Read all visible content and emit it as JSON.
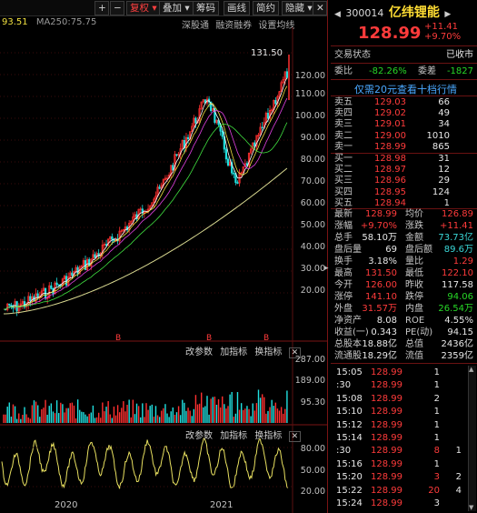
{
  "toolbar": {
    "plus": "+",
    "minus": "−",
    "adjust": "复权",
    "overlay": "叠加",
    "chip": "筹码",
    "draw": "画线",
    "simple": "简约",
    "hide": "隐藏",
    "close": "✕"
  },
  "ma_legend": {
    "ma_short": "93.51",
    "ma250_label": "MA250:",
    "ma250_value": "75.75"
  },
  "top_links": {
    "sh_sz": "深股通",
    "margin": "融资融券",
    "set_ma": "设置均线"
  },
  "price_axis": [
    "131.50",
    "120.00",
    "110.00",
    "100.00",
    "90.00",
    "80.00",
    "70.00",
    "60.00",
    "50.00",
    "40.00",
    "30.00",
    "20.00"
  ],
  "high_label": "131.50",
  "b_markers": [
    "B",
    "B",
    "B"
  ],
  "indicator_bar1": {
    "edit_params": "改参数",
    "add_indicator": "加指标",
    "swap_indicator": "换指标",
    "x": "✕"
  },
  "indicator_bar2": {
    "edit_params": "改参数",
    "add_indicator": "加指标",
    "swap_indicator": "换指标",
    "x": "✕"
  },
  "volume_axis": [
    "287.00",
    "189.00",
    "95.30"
  ],
  "osc_axis": [
    "80.00",
    "50.00",
    "20.00"
  ],
  "time_axis": [
    "2020",
    "2021"
  ],
  "quote": {
    "code": "300014",
    "name": "亿纬锂能",
    "price": "128.99",
    "change": "+11.41",
    "change_pct": "+9.70%",
    "trade_status_label": "交易状态",
    "trade_status": "已收市",
    "webi_label": "委比",
    "webi": "-82.26%",
    "weicha_label": "委差",
    "weicha": "-1827",
    "banner": "仅需20元查看十档行情",
    "asks": [
      {
        "label": "卖五",
        "price": "129.03",
        "vol": "66"
      },
      {
        "label": "卖四",
        "price": "129.02",
        "vol": "49"
      },
      {
        "label": "卖三",
        "price": "129.01",
        "vol": "34"
      },
      {
        "label": "卖二",
        "price": "129.00",
        "vol": "1010"
      },
      {
        "label": "卖一",
        "price": "128.99",
        "vol": "865"
      }
    ],
    "bids": [
      {
        "label": "买一",
        "price": "128.98",
        "vol": "31"
      },
      {
        "label": "买二",
        "price": "128.97",
        "vol": "12"
      },
      {
        "label": "买三",
        "price": "128.96",
        "vol": "29"
      },
      {
        "label": "买四",
        "price": "128.95",
        "vol": "124"
      },
      {
        "label": "买五",
        "price": "128.94",
        "vol": "1"
      }
    ],
    "stats": [
      {
        "l1": "最新",
        "v1": "128.99",
        "c1": "red",
        "l2": "均价",
        "v2": "126.89",
        "c2": "red"
      },
      {
        "l1": "涨幅",
        "v1": "+9.70%",
        "c1": "red",
        "l2": "涨跌",
        "v2": "+11.41",
        "c2": "red"
      },
      {
        "l1": "总手",
        "v1": "58.10万",
        "c1": "white",
        "l2": "金额",
        "v2": "73.73亿",
        "c2": "cyan"
      },
      {
        "l1": "盘后量",
        "v1": "69",
        "c1": "white",
        "l2": "盘后额",
        "v2": "89.6万",
        "c2": "cyan"
      },
      {
        "l1": "换手",
        "v1": "3.18%",
        "c1": "white",
        "l2": "量比",
        "v2": "1.29",
        "c2": "red"
      },
      {
        "l1": "最高",
        "v1": "131.50",
        "c1": "red",
        "l2": "最低",
        "v2": "122.10",
        "c2": "red"
      },
      {
        "l1": "今开",
        "v1": "126.00",
        "c1": "red",
        "l2": "昨收",
        "v2": "117.58",
        "c2": "white"
      },
      {
        "l1": "涨停",
        "v1": "141.10",
        "c1": "red",
        "l2": "跌停",
        "v2": "94.06",
        "c2": "green"
      },
      {
        "l1": "外盘",
        "v1": "31.57万",
        "c1": "red",
        "l2": "内盘",
        "v2": "26.54万",
        "c2": "green"
      },
      {
        "l1": "净资产",
        "v1": "8.08",
        "c1": "white",
        "l2": "ROE",
        "v2": "4.55%",
        "c2": "white"
      },
      {
        "l1": "收益(一)",
        "v1": "0.343",
        "c1": "white",
        "l2": "PE(动)",
        "v2": "94.15",
        "c2": "white"
      },
      {
        "l1": "总股本",
        "v1": "18.88亿",
        "c1": "white",
        "l2": "总值",
        "v2": "2436亿",
        "c2": "white"
      },
      {
        "l1": "流通股",
        "v1": "18.29亿",
        "c1": "white",
        "l2": "流值",
        "v2": "2359亿",
        "c2": "white"
      }
    ],
    "ticks": [
      {
        "time": "15:05",
        "price": "128.99",
        "vol": "1",
        "flag": "",
        "vc": "white"
      },
      {
        "time": ":30",
        "price": "128.99",
        "vol": "1",
        "flag": "",
        "vc": "white"
      },
      {
        "time": "15:08",
        "price": "128.99",
        "vol": "2",
        "flag": "",
        "vc": "white"
      },
      {
        "time": "15:10",
        "price": "128.99",
        "vol": "1",
        "flag": "",
        "vc": "white"
      },
      {
        "time": "15:12",
        "price": "128.99",
        "vol": "1",
        "flag": "",
        "vc": "white"
      },
      {
        "time": "15:14",
        "price": "128.99",
        "vol": "1",
        "flag": "",
        "vc": "white"
      },
      {
        "time": ":30",
        "price": "128.99",
        "vol": "8",
        "flag": "1",
        "vc": "red"
      },
      {
        "time": "15:16",
        "price": "128.99",
        "vol": "1",
        "flag": "",
        "vc": "white"
      },
      {
        "time": "15:20",
        "price": "128.99",
        "vol": "3",
        "flag": "2",
        "vc": "red"
      },
      {
        "time": "15:22",
        "price": "128.99",
        "vol": "20",
        "flag": "4",
        "vc": "red"
      },
      {
        "time": "15:24",
        "price": "128.99",
        "vol": "3",
        "flag": "",
        "vc": "white"
      }
    ]
  }
}
